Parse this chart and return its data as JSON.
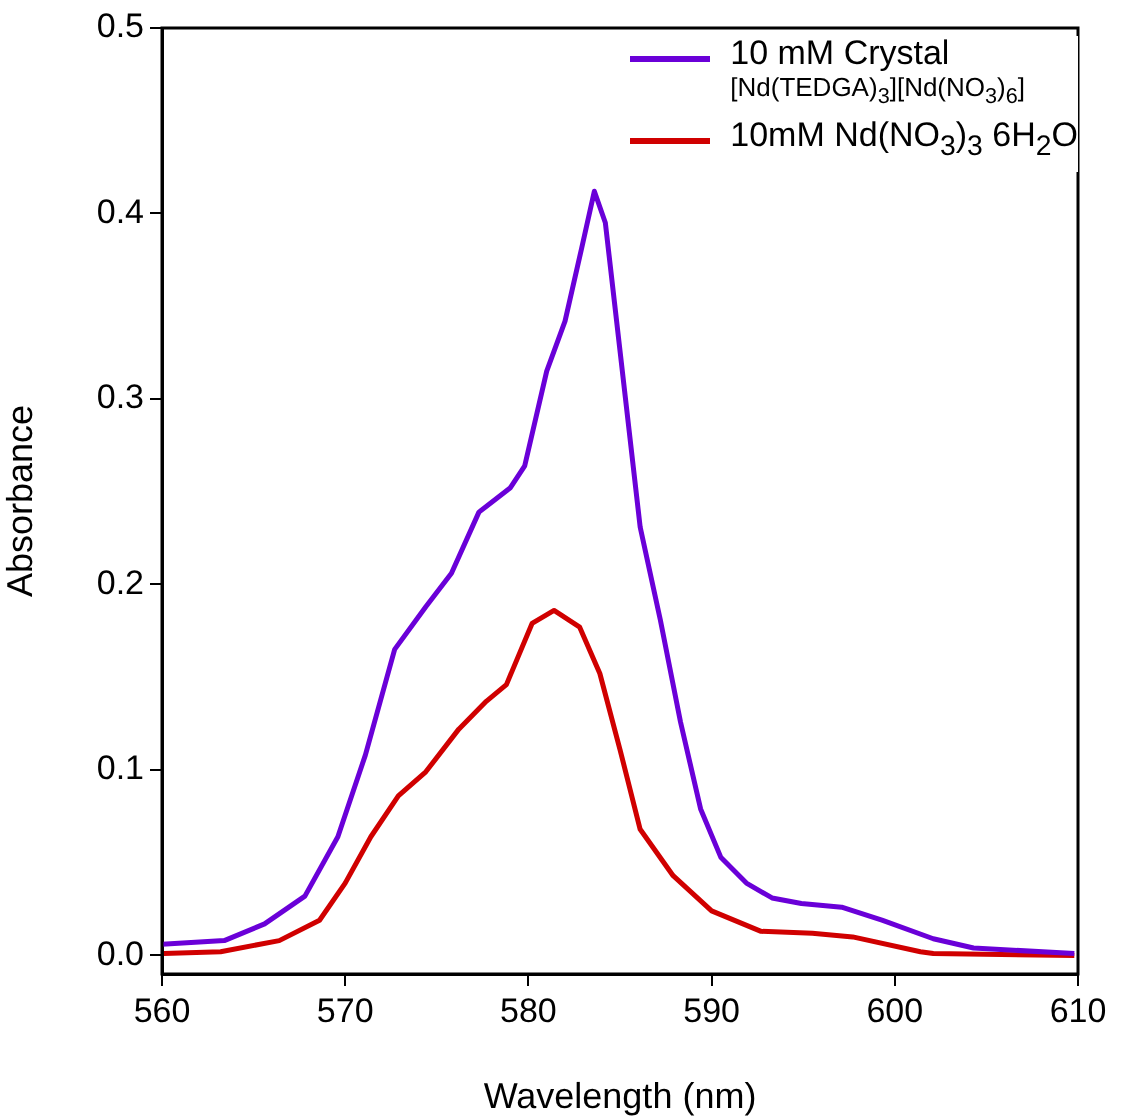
{
  "chart_data": {
    "type": "line",
    "xlabel": "Wavelength (nm)",
    "ylabel": "Absorbance",
    "xlim": [
      560,
      610
    ],
    "ylim": [
      -0.01,
      0.5
    ],
    "xticks": [
      560,
      570,
      580,
      590,
      600,
      610
    ],
    "yticks": [
      {
        "value": 0,
        "label": "0.0"
      },
      {
        "value": 0.1,
        "label": "0.1"
      },
      {
        "value": 0.2,
        "label": "0.2"
      },
      {
        "value": 0.3,
        "label": "0.3"
      },
      {
        "value": 0.4,
        "label": "0.4"
      },
      {
        "value": 0.5,
        "label": "0.5"
      }
    ],
    "grid": false,
    "legend": "top right",
    "marker": "none",
    "line_style": "solid",
    "series": [
      {
        "name": "10 mM Crystal\n[Nd(TEDGA)$_{3}$][Nd(NO$_{3}$)$_{6}$]",
        "color": "#6a00d8",
        "x": [
          560,
          563.4,
          565.6,
          567.8,
          569.6,
          571.1,
          572.7,
          574.4,
          575.8,
          577.3,
          579.0,
          579.8,
          581.0,
          582.0,
          582.9,
          583.6,
          584.2,
          585.0,
          586.1,
          587.2,
          588.3,
          589.4,
          590.5,
          591.9,
          593.3,
          594.9,
          597.1,
          599.3,
          602.1,
          604.3,
          609.8
        ],
        "values": [
          0.006,
          0.008,
          0.017,
          0.032,
          0.064,
          0.108,
          0.165,
          0.188,
          0.206,
          0.239,
          0.252,
          0.264,
          0.315,
          0.342,
          0.381,
          0.412,
          0.395,
          0.326,
          0.231,
          0.181,
          0.126,
          0.079,
          0.053,
          0.039,
          0.031,
          0.028,
          0.026,
          0.019,
          0.009,
          0.004,
          0.001
        ]
      },
      {
        "name": "10mM Nd(NO$_{3}$)$_{3}$ 6H$_{2}$O",
        "color": "#d00000",
        "x": [
          560.1,
          563.2,
          566.4,
          568.6,
          570.0,
          571.4,
          572.9,
          574.4,
          576.2,
          577.7,
          578.8,
          580.2,
          581.4,
          582.8,
          583.9,
          585.0,
          586.1,
          587.9,
          590.0,
          592.7,
          595.5,
          597.7,
          601.4,
          602.1,
          609.8
        ],
        "values": [
          0.001,
          0.002,
          0.008,
          0.019,
          0.039,
          0.064,
          0.086,
          0.099,
          0.122,
          0.137,
          0.146,
          0.179,
          0.186,
          0.177,
          0.152,
          0.111,
          0.068,
          0.043,
          0.024,
          0.013,
          0.012,
          0.01,
          0.002,
          0.001,
          0
        ]
      }
    ]
  }
}
